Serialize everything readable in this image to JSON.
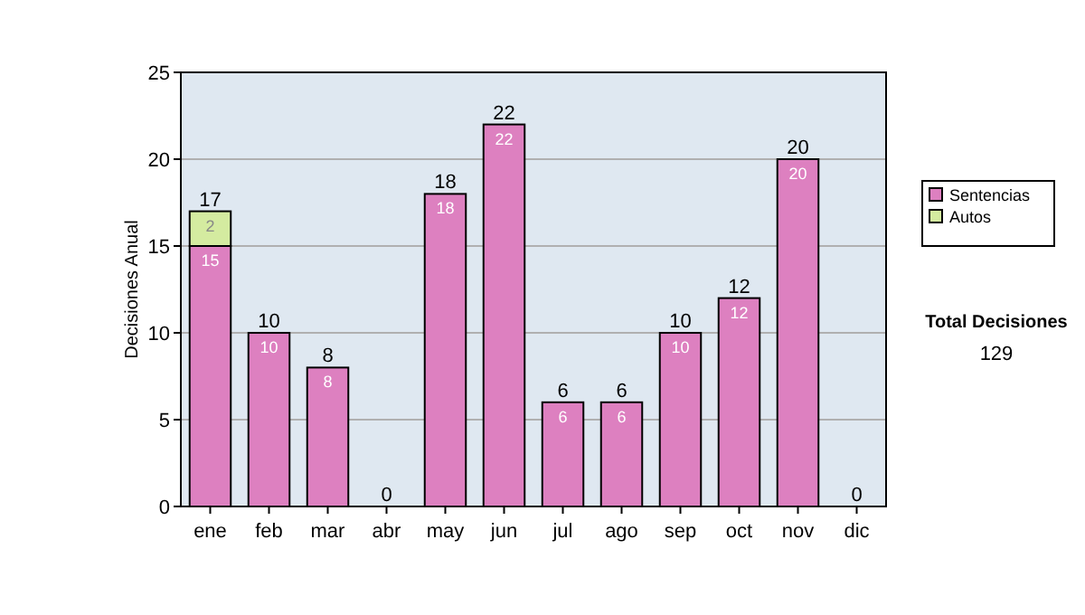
{
  "chart_data": {
    "type": "bar",
    "ylabel": "Decisiones Anual",
    "categories": [
      "ene",
      "feb",
      "mar",
      "abr",
      "may",
      "jun",
      "jul",
      "ago",
      "sep",
      "oct",
      "nov",
      "dic"
    ],
    "series": [
      {
        "name": "Sentencias",
        "color": "#dd80c0",
        "values": [
          15,
          10,
          8,
          0,
          18,
          22,
          6,
          6,
          10,
          12,
          20,
          0
        ],
        "value_labels": [
          "15",
          "10",
          "8",
          null,
          "18",
          "22",
          "6",
          "6",
          "10",
          "12",
          "20",
          null
        ]
      },
      {
        "name": "Autos",
        "color": "#d4eba0",
        "values": [
          2,
          0,
          0,
          0,
          0,
          0,
          0,
          0,
          0,
          0,
          0,
          0
        ],
        "value_labels": [
          "2",
          null,
          null,
          null,
          null,
          null,
          null,
          null,
          null,
          null,
          null,
          null
        ]
      }
    ],
    "stacked": true,
    "totals": [
      "17",
      "10",
      "8",
      "0",
      "18",
      "22",
      "6",
      "6",
      "10",
      "12",
      "20",
      "0"
    ],
    "ylim": [
      0,
      25
    ],
    "yticks": [
      0,
      5,
      10,
      15,
      20,
      25
    ],
    "grid": "y",
    "legend": "right",
    "annotations": [
      "Total Decisiones",
      "129"
    ]
  }
}
